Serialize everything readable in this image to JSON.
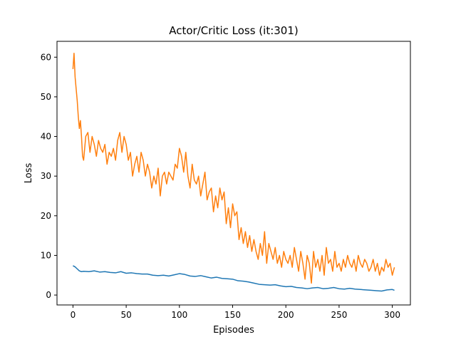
{
  "chart_data": {
    "type": "line",
    "title": "Actor/Critic Loss (it:301)",
    "xlabel": "Episodes",
    "ylabel": "Loss",
    "xlim": [
      -15,
      317
    ],
    "ylim": [
      -2.5,
      64
    ],
    "xticks": [
      0,
      50,
      100,
      150,
      200,
      250,
      300
    ],
    "yticks": [
      0,
      10,
      20,
      30,
      40,
      50,
      60
    ],
    "grid": false,
    "legend": "none",
    "series": [
      {
        "color": "#1f77b4",
        "x": [
          0,
          2,
          4,
          6,
          8,
          10,
          15,
          20,
          25,
          30,
          35,
          40,
          45,
          50,
          55,
          60,
          65,
          70,
          75,
          80,
          85,
          90,
          95,
          100,
          105,
          110,
          115,
          120,
          125,
          130,
          135,
          140,
          145,
          150,
          155,
          160,
          165,
          170,
          175,
          180,
          185,
          190,
          195,
          200,
          205,
          210,
          215,
          220,
          225,
          230,
          235,
          240,
          245,
          250,
          255,
          260,
          265,
          270,
          275,
          280,
          285,
          290,
          295,
          300,
          302
        ],
        "y": [
          7.4,
          7.1,
          6.6,
          6.1,
          5.9,
          6.0,
          5.9,
          6.1,
          5.8,
          5.9,
          5.7,
          5.6,
          5.9,
          5.5,
          5.6,
          5.4,
          5.3,
          5.3,
          5.0,
          4.9,
          5.0,
          4.8,
          5.1,
          5.4,
          5.2,
          4.8,
          4.7,
          4.9,
          4.6,
          4.3,
          4.5,
          4.2,
          4.1,
          4.0,
          3.6,
          3.5,
          3.3,
          3.0,
          2.7,
          2.6,
          2.5,
          2.6,
          2.3,
          2.1,
          2.2,
          1.9,
          1.8,
          1.6,
          1.8,
          1.9,
          1.6,
          1.7,
          1.9,
          1.6,
          1.5,
          1.7,
          1.5,
          1.4,
          1.3,
          1.2,
          1.1,
          1.0,
          1.3,
          1.4,
          1.2
        ]
      },
      {
        "color": "#ff7f0e",
        "x": [
          0,
          1,
          2,
          3,
          4,
          5,
          6,
          7,
          8,
          9,
          10,
          12,
          14,
          16,
          18,
          20,
          22,
          24,
          26,
          28,
          30,
          32,
          34,
          36,
          38,
          40,
          42,
          44,
          46,
          48,
          50,
          52,
          54,
          56,
          58,
          60,
          62,
          64,
          66,
          68,
          70,
          72,
          74,
          76,
          78,
          80,
          82,
          84,
          86,
          88,
          90,
          92,
          94,
          96,
          98,
          100,
          102,
          104,
          106,
          108,
          110,
          112,
          114,
          116,
          118,
          120,
          122,
          124,
          126,
          128,
          130,
          132,
          134,
          136,
          138,
          140,
          142,
          144,
          146,
          148,
          150,
          152,
          154,
          156,
          158,
          160,
          162,
          164,
          166,
          168,
          170,
          172,
          174,
          176,
          178,
          180,
          182,
          184,
          186,
          188,
          190,
          192,
          194,
          196,
          198,
          200,
          202,
          204,
          206,
          208,
          210,
          212,
          214,
          216,
          218,
          220,
          222,
          224,
          226,
          228,
          230,
          232,
          234,
          236,
          238,
          240,
          242,
          244,
          246,
          248,
          250,
          252,
          254,
          256,
          258,
          260,
          262,
          264,
          266,
          268,
          270,
          272,
          274,
          276,
          278,
          280,
          282,
          284,
          286,
          288,
          290,
          292,
          294,
          296,
          298,
          300,
          302
        ],
        "y": [
          57,
          61,
          55,
          52,
          49,
          45,
          42,
          44,
          40,
          35,
          34,
          40,
          41,
          36,
          40,
          38,
          35,
          39,
          37,
          36,
          38,
          33,
          36,
          35,
          37,
          34,
          39,
          41,
          36,
          40,
          38,
          34,
          36,
          30,
          33,
          35,
          31,
          36,
          34,
          30,
          33,
          31,
          27,
          30,
          28,
          32,
          25,
          30,
          31,
          28,
          31,
          30,
          29,
          33,
          32,
          37,
          35,
          31,
          36,
          30,
          27,
          33,
          29,
          28,
          30,
          25,
          28,
          31,
          24,
          26,
          27,
          21,
          25,
          22,
          27,
          24,
          26,
          18,
          22,
          17,
          23,
          20,
          21,
          14,
          17,
          13,
          16,
          12,
          15,
          11,
          14,
          11,
          9,
          13,
          10,
          16,
          8,
          13,
          11,
          9,
          12,
          8,
          10,
          7,
          11,
          9,
          8,
          10,
          7,
          12,
          9,
          6,
          11,
          8,
          4,
          10,
          8,
          3,
          11,
          7,
          9,
          6,
          10,
          5,
          12,
          8,
          9,
          6,
          11,
          7,
          8,
          6,
          9,
          7,
          10,
          8,
          7,
          9,
          6,
          10,
          8,
          7,
          9,
          8,
          6,
          7,
          9,
          6,
          8,
          5,
          7,
          6,
          9,
          7,
          8,
          5,
          7
        ]
      }
    ]
  }
}
